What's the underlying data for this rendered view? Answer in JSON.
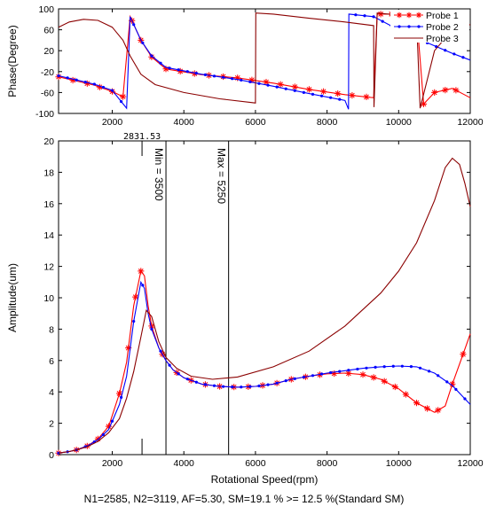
{
  "colors": {
    "probe1": "#ff0000",
    "probe2": "#0000ff",
    "probe3": "#8b0000"
  },
  "chart_data": [
    {
      "type": "line",
      "title": "",
      "xlabel": "",
      "ylabel": "Phase(Degree)",
      "xlim": [
        500,
        12000
      ],
      "ylim": [
        -100,
        100
      ],
      "x_ticks": [
        2000,
        4000,
        6000,
        8000,
        10000,
        12000
      ],
      "y_ticks": [
        100,
        60,
        20,
        -20,
        -60,
        -100
      ],
      "legend_position": "top-right",
      "series": [
        {
          "name": "Probe 1",
          "color": "#ff0000",
          "marker": "star",
          "points": [
            [
              500,
              -30
            ],
            [
              1000,
              -38
            ],
            [
              1500,
              -46
            ],
            [
              2000,
              -58
            ],
            [
              2300,
              -68
            ],
            [
              2500,
              85
            ],
            [
              2800,
              40
            ],
            [
              3100,
              8
            ],
            [
              3500,
              -15
            ],
            [
              4500,
              -26
            ],
            [
              5500,
              -32
            ],
            [
              6500,
              -42
            ],
            [
              7500,
              -54
            ],
            [
              8500,
              -64
            ],
            [
              9300,
              -70
            ],
            [
              9400,
              90
            ],
            [
              10000,
              90
            ],
            [
              10500,
              88
            ],
            [
              10700,
              -82
            ],
            [
              11000,
              -60
            ],
            [
              11500,
              -52
            ],
            [
              12000,
              -70
            ]
          ],
          "marker_x": [
            500,
            900,
            1300,
            1650,
            2000,
            2300,
            2550,
            2800,
            3100,
            3500,
            3900,
            4300,
            4700,
            5100,
            5500,
            5900,
            6300,
            6700,
            7100,
            7500,
            7900,
            8300,
            8700,
            9100,
            9500,
            9800,
            10100,
            10400,
            10700,
            11000,
            11300,
            11600
          ]
        },
        {
          "name": "Probe 2",
          "color": "#0000ff",
          "marker": "dot",
          "points": [
            [
              500,
              -28
            ],
            [
              1000,
              -36
            ],
            [
              1500,
              -44
            ],
            [
              2000,
              -56
            ],
            [
              2400,
              -90
            ],
            [
              2500,
              85
            ],
            [
              2800,
              40
            ],
            [
              3100,
              10
            ],
            [
              3500,
              -12
            ],
            [
              4500,
              -25
            ],
            [
              5500,
              -35
            ],
            [
              6500,
              -48
            ],
            [
              7500,
              -62
            ],
            [
              8500,
              -75
            ],
            [
              8600,
              -92
            ],
            [
              8610,
              90
            ],
            [
              9300,
              85
            ],
            [
              10000,
              60
            ],
            [
              10800,
              35
            ],
            [
              11500,
              15
            ],
            [
              12000,
              2
            ]
          ],
          "marker_x": [
            500,
            750,
            1000,
            1250,
            1500,
            1750,
            2000,
            2250,
            2600,
            2850,
            3100,
            3350,
            3600,
            3850,
            4100,
            4350,
            4600,
            4850,
            5100,
            5350,
            5600,
            5850,
            6100,
            6350,
            6600,
            6850,
            7100,
            7350,
            7600,
            7850,
            8100,
            8350,
            8800,
            9050,
            9300,
            9550,
            9800,
            10050,
            10300,
            10550,
            10800,
            11050,
            11300,
            11550,
            11800
          ]
        },
        {
          "name": "Probe 3",
          "color": "#8b0000",
          "marker": "none",
          "points": [
            [
              500,
              65
            ],
            [
              800,
              75
            ],
            [
              1200,
              80
            ],
            [
              1600,
              78
            ],
            [
              2000,
              65
            ],
            [
              2300,
              40
            ],
            [
              2500,
              10
            ],
            [
              2800,
              -25
            ],
            [
              3200,
              -45
            ],
            [
              4000,
              -60
            ],
            [
              5000,
              -72
            ],
            [
              6000,
              -80
            ],
            [
              6010,
              92
            ],
            [
              6500,
              90
            ],
            [
              7500,
              82
            ],
            [
              8500,
              75
            ],
            [
              9300,
              68
            ],
            [
              9310,
              -88
            ],
            [
              9400,
              92
            ],
            [
              10000,
              88
            ],
            [
              10500,
              80
            ],
            [
              10600,
              -90
            ],
            [
              11000,
              20
            ],
            [
              11500,
              60
            ],
            [
              12000,
              70
            ]
          ]
        }
      ]
    },
    {
      "type": "line",
      "title": "",
      "xlabel": "Rotational Speed(rpm)",
      "ylabel": "Amplitude(um)",
      "xlim": [
        500,
        12000
      ],
      "ylim": [
        0,
        20
      ],
      "x_ticks": [
        2000,
        4000,
        6000,
        8000,
        10000,
        12000
      ],
      "y_ticks": [
        0,
        2,
        4,
        6,
        8,
        10,
        12,
        14,
        16,
        18,
        20
      ],
      "series": [
        {
          "name": "Probe 1",
          "color": "#ff0000",
          "marker": "star",
          "points": [
            [
              500,
              0.1
            ],
            [
              800,
              0.2
            ],
            [
              1000,
              0.3
            ],
            [
              1300,
              0.55
            ],
            [
              1600,
              1
            ],
            [
              1900,
              1.8
            ],
            [
              2200,
              3.9
            ],
            [
              2400,
              5.9
            ],
            [
              2600,
              9.5
            ],
            [
              2800,
              11.7
            ],
            [
              2900,
              11.4
            ],
            [
              3000,
              9.5
            ],
            [
              3100,
              8.2
            ],
            [
              3300,
              6.8
            ],
            [
              3500,
              6
            ],
            [
              3700,
              5.4
            ],
            [
              4000,
              4.9
            ],
            [
              4500,
              4.5
            ],
            [
              5000,
              4.35
            ],
            [
              5500,
              4.3
            ],
            [
              6000,
              4.35
            ],
            [
              6500,
              4.5
            ],
            [
              7000,
              4.8
            ],
            [
              7500,
              5
            ],
            [
              8000,
              5.15
            ],
            [
              8500,
              5.2
            ],
            [
              9000,
              5.1
            ],
            [
              9500,
              4.8
            ],
            [
              10000,
              4.2
            ],
            [
              10500,
              3.3
            ],
            [
              11000,
              2.7
            ],
            [
              11300,
              3.1
            ],
            [
              11500,
              4.5
            ],
            [
              11800,
              6.4
            ],
            [
              12000,
              7.7
            ]
          ],
          "marker_x": [
            500,
            1000,
            1300,
            1600,
            1900,
            2200,
            2450,
            2650,
            2800,
            3100,
            3400,
            3800,
            4200,
            4600,
            5000,
            5400,
            5800,
            6200,
            6600,
            7000,
            7400,
            7800,
            8200,
            8600,
            9000,
            9300,
            9600,
            9900,
            10200,
            10500,
            10800,
            11100,
            11500,
            11800
          ]
        },
        {
          "name": "Probe 2",
          "color": "#0000ff",
          "marker": "dot",
          "points": [
            [
              500,
              0.1
            ],
            [
              800,
              0.2
            ],
            [
              1000,
              0.3
            ],
            [
              1300,
              0.55
            ],
            [
              1600,
              0.95
            ],
            [
              1900,
              1.6
            ],
            [
              2200,
              3.2
            ],
            [
              2400,
              5
            ],
            [
              2600,
              8.5
            ],
            [
              2800,
              11
            ],
            [
              2900,
              10.6
            ],
            [
              3000,
              9
            ],
            [
              3100,
              8
            ],
            [
              3300,
              6.8
            ],
            [
              3500,
              6
            ],
            [
              3700,
              5.4
            ],
            [
              4000,
              4.9
            ],
            [
              4500,
              4.5
            ],
            [
              5000,
              4.35
            ],
            [
              5500,
              4.3
            ],
            [
              6000,
              4.35
            ],
            [
              6500,
              4.5
            ],
            [
              7000,
              4.8
            ],
            [
              7500,
              5
            ],
            [
              8000,
              5.2
            ],
            [
              8500,
              5.35
            ],
            [
              9000,
              5.5
            ],
            [
              9500,
              5.6
            ],
            [
              10000,
              5.65
            ],
            [
              10500,
              5.6
            ],
            [
              11000,
              5.2
            ],
            [
              11500,
              4.4
            ],
            [
              12000,
              3.2
            ]
          ],
          "marker_x": [
            500,
            750,
            1000,
            1250,
            1500,
            1750,
            2000,
            2250,
            2600,
            2850,
            3100,
            3350,
            3600,
            3850,
            4100,
            4350,
            4600,
            4850,
            5100,
            5350,
            5600,
            5850,
            6100,
            6350,
            6600,
            6850,
            7100,
            7350,
            7600,
            7850,
            8100,
            8350,
            8600,
            8850,
            9100,
            9350,
            9600,
            9850,
            10100,
            10350,
            10600,
            10850,
            11100,
            11350,
            11600,
            11850
          ]
        },
        {
          "name": "Probe 3",
          "color": "#8b0000",
          "marker": "none",
          "points": [
            [
              500,
              0.1
            ],
            [
              800,
              0.2
            ],
            [
              1000,
              0.3
            ],
            [
              1300,
              0.5
            ],
            [
              1600,
              0.85
            ],
            [
              1900,
              1.4
            ],
            [
              2200,
              2.3
            ],
            [
              2400,
              3.6
            ],
            [
              2600,
              5.3
            ],
            [
              2800,
              7.5
            ],
            [
              2950,
              9.2
            ],
            [
              3100,
              8.8
            ],
            [
              3300,
              7.2
            ],
            [
              3500,
              6.2
            ],
            [
              3800,
              5.5
            ],
            [
              4200,
              5
            ],
            [
              4800,
              4.8
            ],
            [
              5500,
              4.95
            ],
            [
              6500,
              5.6
            ],
            [
              7500,
              6.6
            ],
            [
              8500,
              8.2
            ],
            [
              9500,
              10.3
            ],
            [
              10000,
              11.7
            ],
            [
              10500,
              13.5
            ],
            [
              11000,
              16.2
            ],
            [
              11300,
              18.3
            ],
            [
              11500,
              18.9
            ],
            [
              11700,
              18.5
            ],
            [
              11850,
              17.3
            ],
            [
              12000,
              15.8
            ]
          ]
        }
      ],
      "vertical_lines": [
        {
          "x": 2831.53,
          "label": "2831.53"
        },
        {
          "x": 3500,
          "label": "Min = 3500"
        },
        {
          "x": 5250,
          "label": "Max = 5250"
        }
      ]
    }
  ],
  "footer": {
    "text": "N1=2585, N2=3119, AF=5.30, SM=19.1 % >= 12.5 %(Standard SM)"
  }
}
